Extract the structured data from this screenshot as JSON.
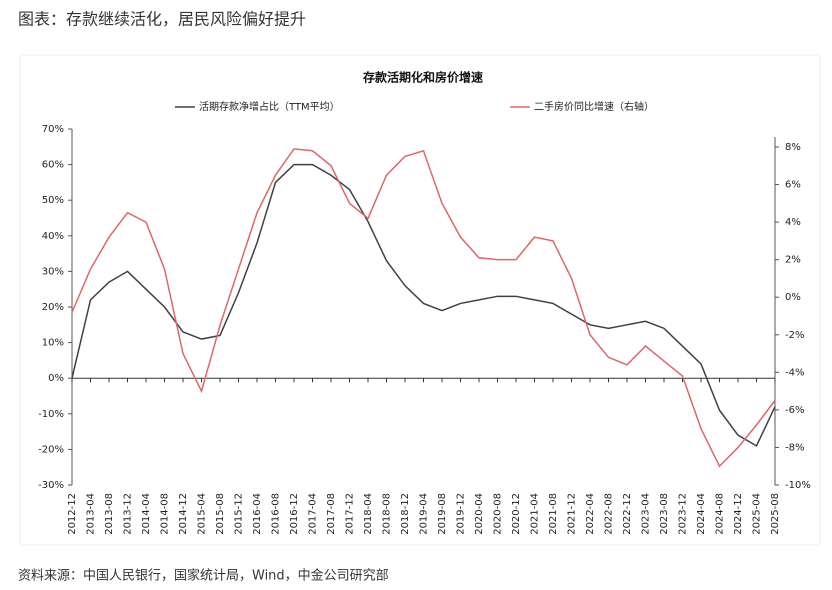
{
  "header": {
    "title": "图表：存款继续活化，居民风险偏好提升"
  },
  "source": "资料来源：中国人民银行，国家统计局，Wind，中金公司研究部",
  "chart_data": {
    "type": "line",
    "title": "存款活期化和房价增速",
    "categories": [
      "2012-12",
      "2013-04",
      "2013-08",
      "2013-12",
      "2014-04",
      "2014-08",
      "2014-12",
      "2015-04",
      "2015-08",
      "2015-12",
      "2016-04",
      "2016-08",
      "2016-12",
      "2017-04",
      "2017-08",
      "2017-12",
      "2018-04",
      "2018-08",
      "2018-12",
      "2019-04",
      "2019-08",
      "2019-12",
      "2020-04",
      "2020-08",
      "2020-12",
      "2021-04",
      "2021-08",
      "2021-12",
      "2022-04",
      "2022-08",
      "2022-12",
      "2023-04",
      "2023-08",
      "2023-12",
      "2024-04",
      "2024-08",
      "2024-12",
      "2025-04",
      "2025-08"
    ],
    "series": [
      {
        "name": "活期存款净增占比（TTM平均）",
        "color": "#404040",
        "axis": "y",
        "values": [
          0,
          22,
          27,
          30,
          25,
          20,
          13,
          11,
          12,
          24,
          38,
          55,
          60,
          60,
          57,
          53,
          44,
          33,
          26,
          21,
          19,
          21,
          22,
          23,
          23,
          22,
          21,
          18,
          15,
          14,
          15,
          16,
          14,
          9,
          4,
          -9,
          -16,
          -19,
          -8
        ]
      },
      {
        "name": "二手房价同比增速（右轴）",
        "color": "#e06666",
        "axis": "y2",
        "values": [
          -0.8,
          1.5,
          3.2,
          4.5,
          4.0,
          1.5,
          -3,
          -5,
          -1.5,
          1.5,
          4.5,
          6.5,
          7.9,
          7.8,
          7,
          5,
          4.2,
          6.5,
          7.5,
          7.8,
          5,
          3.2,
          2.1,
          2,
          2,
          3.2,
          3,
          1,
          -2,
          -3.2,
          -3.6,
          -2.6,
          -3.4,
          -4.2,
          -7,
          -9,
          -8,
          -6.8,
          -5.5
        ]
      }
    ],
    "ylim": [
      -30,
      70
    ],
    "yticks": [
      {
        "value": -30,
        "label": "-30%"
      },
      {
        "value": -20,
        "label": "-20%"
      },
      {
        "value": -10,
        "label": "-10%"
      },
      {
        "value": 0,
        "label": "0%"
      },
      {
        "value": 10,
        "label": "10%"
      },
      {
        "value": 20,
        "label": "20%"
      },
      {
        "value": 30,
        "label": "30%"
      },
      {
        "value": 40,
        "label": "40%"
      },
      {
        "value": 50,
        "label": "50%"
      },
      {
        "value": 60,
        "label": "60%"
      },
      {
        "value": 70,
        "label": "70%"
      }
    ],
    "y2lim": [
      -10,
      8
    ],
    "y2ticks": [
      {
        "value": -10,
        "label": "-10%"
      },
      {
        "value": -8,
        "label": "-8%"
      },
      {
        "value": -6,
        "label": "-6%"
      },
      {
        "value": -4,
        "label": "-4%"
      },
      {
        "value": -2,
        "label": "-2%"
      },
      {
        "value": 0,
        "label": "0%"
      },
      {
        "value": 2,
        "label": "2%"
      },
      {
        "value": 4,
        "label": "4%"
      },
      {
        "value": 6,
        "label": "6%"
      },
      {
        "value": 8,
        "label": "8%"
      }
    ],
    "grid": false
  }
}
